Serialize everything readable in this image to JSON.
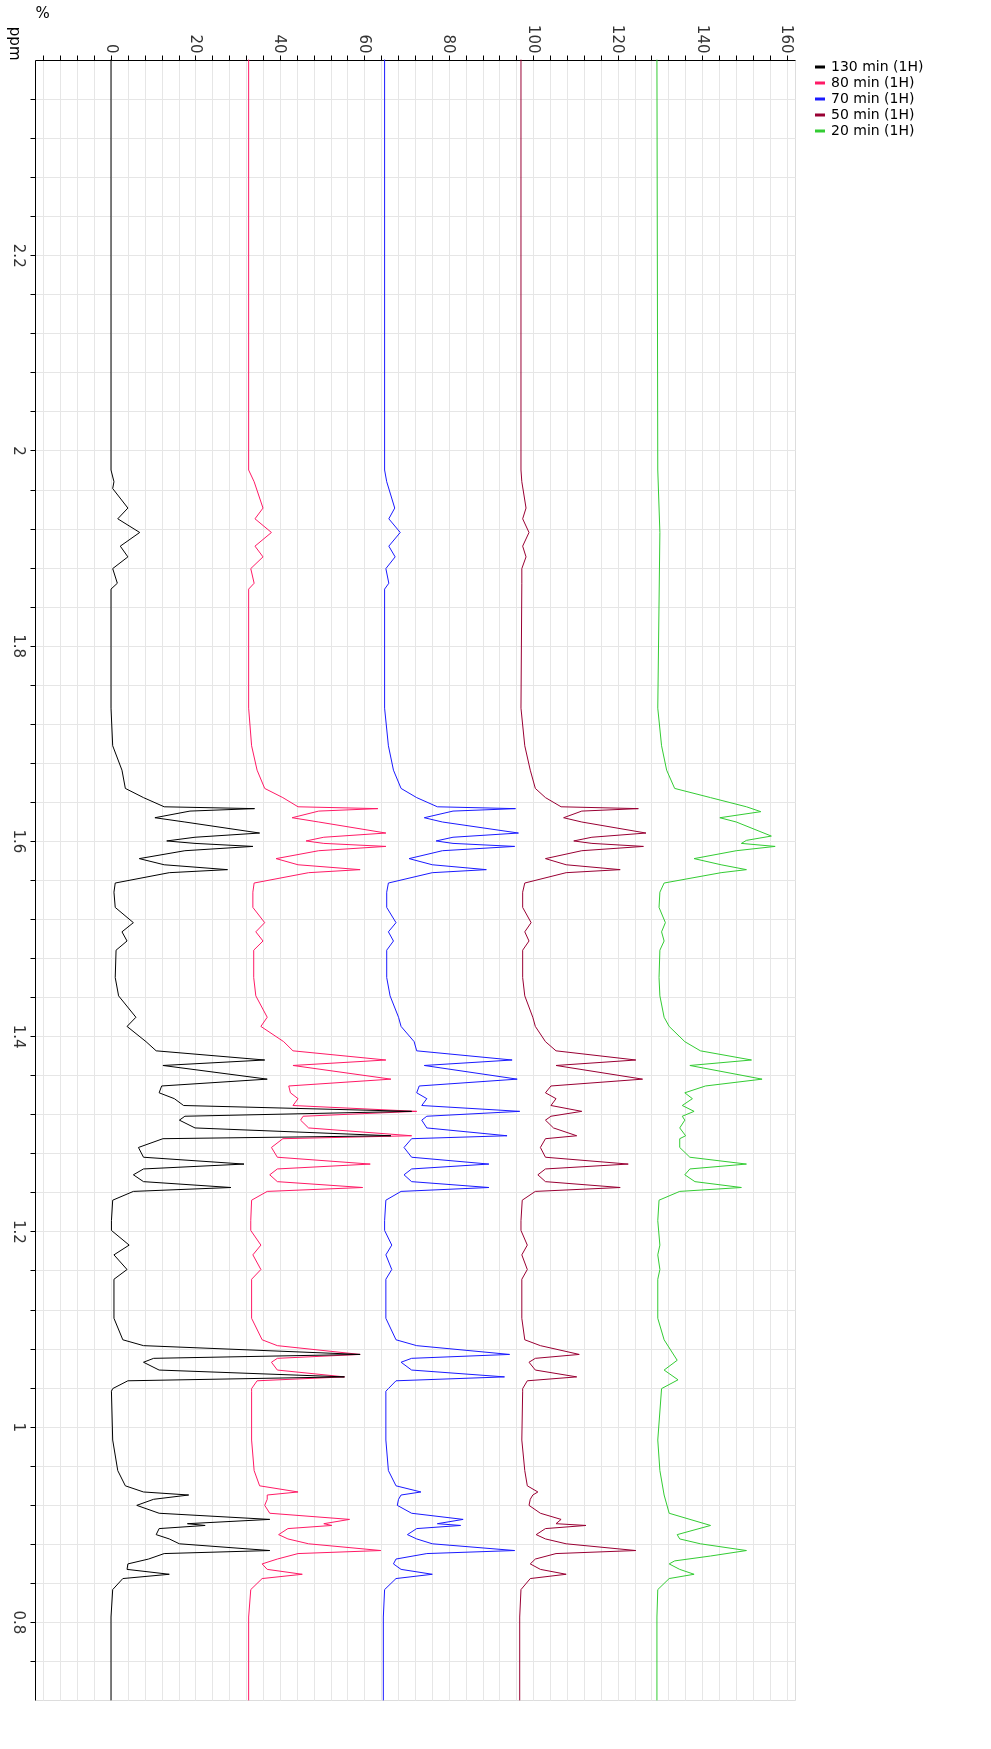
{
  "chart_data": {
    "type": "line",
    "orientation": "horizontal",
    "xlabel": "%",
    "ylabel": "ppm",
    "legend": "top right",
    "grid": true,
    "xlim": [
      -18,
      162
    ],
    "ylim": [
      0.72,
      2.4
    ],
    "xticks": [
      {
        "value": -16,
        "label": null
      },
      {
        "value": -12,
        "label": null
      },
      {
        "value": -8,
        "label": null
      },
      {
        "value": -4,
        "label": null
      },
      0,
      {
        "value": 4,
        "label": null
      },
      {
        "value": 8,
        "label": null
      },
      {
        "value": 12,
        "label": null
      },
      {
        "value": 16,
        "label": null
      },
      20,
      {
        "value": 24,
        "label": null
      },
      {
        "value": 28,
        "label": null
      },
      {
        "value": 32,
        "label": null
      },
      {
        "value": 36,
        "label": null
      },
      40,
      {
        "value": 44,
        "label": null
      },
      {
        "value": 48,
        "label": null
      },
      {
        "value": 52,
        "label": null
      },
      {
        "value": 56,
        "label": null
      },
      60,
      {
        "value": 64,
        "label": null
      },
      {
        "value": 68,
        "label": null
      },
      {
        "value": 72,
        "label": null
      },
      {
        "value": 76,
        "label": null
      },
      80,
      {
        "value": 84,
        "label": null
      },
      {
        "value": 88,
        "label": null
      },
      {
        "value": 92,
        "label": null
      },
      {
        "value": 96,
        "label": null
      },
      100,
      {
        "value": 104,
        "label": null
      },
      {
        "value": 108,
        "label": null
      },
      {
        "value": 112,
        "label": null
      },
      {
        "value": 116,
        "label": null
      },
      120,
      {
        "value": 124,
        "label": null
      },
      {
        "value": 128,
        "label": null
      },
      {
        "value": 132,
        "label": null
      },
      {
        "value": 136,
        "label": null
      },
      140,
      {
        "value": 144,
        "label": null
      },
      {
        "value": 148,
        "label": null
      },
      {
        "value": 152,
        "label": null
      },
      {
        "value": 156,
        "label": null
      },
      160
    ],
    "yticks": [
      {
        "value": 0.76,
        "label": null
      },
      0.8,
      {
        "value": 0.84,
        "label": null
      },
      {
        "value": 0.88,
        "label": null
      },
      {
        "value": 0.92,
        "label": null
      },
      {
        "value": 0.96,
        "label": null
      },
      1,
      {
        "value": 1.04,
        "label": null
      },
      {
        "value": 1.08,
        "label": null
      },
      {
        "value": 1.12,
        "label": null
      },
      {
        "value": 1.16,
        "label": null
      },
      1.2,
      {
        "value": 1.24,
        "label": null
      },
      {
        "value": 1.28,
        "label": null
      },
      {
        "value": 1.32,
        "label": null
      },
      {
        "value": 1.36,
        "label": null
      },
      1.4,
      {
        "value": 1.44,
        "label": null
      },
      {
        "value": 1.48,
        "label": null
      },
      {
        "value": 1.52,
        "label": null
      },
      {
        "value": 1.56,
        "label": null
      },
      1.6,
      {
        "value": 1.64,
        "label": null
      },
      {
        "value": 1.68,
        "label": null
      },
      {
        "value": 1.72,
        "label": null
      },
      {
        "value": 1.76,
        "label": null
      },
      1.8,
      {
        "value": 1.84,
        "label": null
      },
      {
        "value": 1.88,
        "label": null
      },
      {
        "value": 1.92,
        "label": null
      },
      {
        "value": 1.96,
        "label": null
      },
      2,
      {
        "value": 2.04,
        "label": null
      },
      {
        "value": 2.08,
        "label": null
      },
      {
        "value": 2.12,
        "label": null
      },
      {
        "value": 2.16,
        "label": null
      },
      2.2,
      {
        "value": 2.24,
        "label": null
      },
      {
        "value": 2.28,
        "label": null
      },
      {
        "value": 2.32,
        "label": null
      },
      {
        "value": 2.36,
        "label": null
      }
    ],
    "series": [
      {
        "name": "130 min (1H)",
        "color": "#000000",
        "x": [
          2.4,
          1.98,
          1.968,
          1.961,
          1.941,
          1.93,
          1.916,
          1.902,
          1.891,
          1.879,
          1.864,
          1.858,
          1.736,
          1.6975,
          1.6725,
          1.6538,
          1.6444,
          1.635,
          1.6331,
          1.6306,
          1.6238,
          1.6194,
          1.6081,
          1.6038,
          1.6,
          1.5975,
          1.5944,
          1.59,
          1.5819,
          1.5756,
          1.5706,
          1.5675,
          1.5569,
          1.5475,
          1.5319,
          1.5163,
          1.5069,
          1.4975,
          1.4881,
          1.46,
          1.4413,
          1.4194,
          1.41,
          1.3944,
          1.385,
          1.3756,
          1.37,
          1.356,
          1.349,
          1.342,
          1.336,
          1.329,
          1.323,
          1.318,
          1.314,
          1.306,
          1.298,
          1.295,
          1.286,
          1.276,
          1.269,
          1.264,
          1.258,
          1.251,
          1.245,
          1.241,
          1.232,
          1.211,
          1.201,
          1.186,
          1.176,
          1.161,
          1.151,
          1.111,
          1.089,
          1.083,
          1.074,
          1.07,
          1.066,
          1.058,
          1.051,
          1.047,
          1.039,
          1.0363,
          0.9863,
          0.955,
          0.9394,
          0.9331,
          0.93,
          0.9256,
          0.9194,
          0.9113,
          0.905,
          0.9006,
          0.8988,
          0.8956,
          0.8894,
          0.885,
          0.88,
          0.8731,
          0.87,
          0.8644,
          0.8594,
          0.8538,
          0.8488,
          0.8444,
          0.8331,
          0.805,
          0.72
        ],
        "values": [
          0,
          0,
          0.7,
          0.4,
          4.0,
          1.6,
          6.8,
          2.2,
          4.0,
          0.4,
          1.5,
          0,
          0,
          0.4,
          2.6,
          3.4,
          7.7,
          12.6,
          34.0,
          18.7,
          10.4,
          17.5,
          35.2,
          19.9,
          13.2,
          19.9,
          33.6,
          17.5,
          6.7,
          12.6,
          27.6,
          13.8,
          1.0,
          0.7,
          1.0,
          5.3,
          2.6,
          3.8,
          1.2,
          1.0,
          1.8,
          5.9,
          3.8,
          8.3,
          10.7,
          36.4,
          12.3,
          37.0,
          12.0,
          11.4,
          15.0,
          17.2,
          71.2,
          17.5,
          16.2,
          19.9,
          66.3,
          12.3,
          6.5,
          7.7,
          31.5,
          7.7,
          5.3,
          7.7,
          28.4,
          5.3,
          0.4,
          0.1,
          0.1,
          4.3,
          0.7,
          3.8,
          0.7,
          0.7,
          2.8,
          7.7,
          59.0,
          10.1,
          7.7,
          11.4,
          55.3,
          4.0,
          0.4,
          0.1,
          0.4,
          1.6,
          3.4,
          7.7,
          18.4,
          10.1,
          6.1,
          11.4,
          37.6,
          18.1,
          22.3,
          11.4,
          10.7,
          13.8,
          16.2,
          37.6,
          12.6,
          8.9,
          4.0,
          3.8,
          13.8,
          2.8,
          0.4,
          0,
          0
        ]
      },
      {
        "name": "80 min (1H)",
        "color": "#ff1a66",
        "x": [
          2.4,
          1.98,
          1.968,
          1.941,
          1.93,
          1.916,
          1.902,
          1.891,
          1.879,
          1.864,
          1.858,
          1.736,
          1.6975,
          1.6725,
          1.6538,
          1.6444,
          1.635,
          1.6331,
          1.6306,
          1.6238,
          1.6194,
          1.6081,
          1.6038,
          1.6,
          1.5975,
          1.5944,
          1.59,
          1.5819,
          1.5756,
          1.5706,
          1.5675,
          1.5569,
          1.5475,
          1.5319,
          1.5163,
          1.5069,
          1.4975,
          1.4881,
          1.46,
          1.4413,
          1.4194,
          1.41,
          1.3944,
          1.385,
          1.3756,
          1.37,
          1.356,
          1.349,
          1.342,
          1.336,
          1.329,
          1.323,
          1.318,
          1.314,
          1.306,
          1.298,
          1.295,
          1.286,
          1.276,
          1.269,
          1.264,
          1.258,
          1.251,
          1.245,
          1.241,
          1.232,
          1.211,
          1.201,
          1.186,
          1.176,
          1.161,
          1.151,
          1.111,
          1.089,
          1.083,
          1.074,
          1.07,
          1.066,
          1.058,
          1.051,
          1.047,
          1.039,
          1.0363,
          0.9863,
          0.955,
          0.9394,
          0.9331,
          0.93,
          0.9256,
          0.9194,
          0.9113,
          0.905,
          0.9006,
          0.8988,
          0.8956,
          0.8894,
          0.885,
          0.88,
          0.8731,
          0.87,
          0.8644,
          0.8594,
          0.8538,
          0.8488,
          0.8444,
          0.8331,
          0.805,
          0.72
        ],
        "values": [
          32.6,
          32.6,
          33.9,
          36.0,
          34.1,
          38.0,
          34.1,
          36.0,
          33.1,
          33.9,
          32.6,
          32.6,
          33.3,
          34.6,
          36.4,
          40.7,
          44.3,
          63.2,
          49.2,
          42.9,
          49.2,
          65.1,
          50.4,
          46.2,
          50.4,
          65.1,
          49.2,
          39.1,
          44.3,
          59.0,
          46.8,
          33.9,
          33.6,
          33.6,
          36.4,
          34.3,
          36.0,
          33.8,
          33.8,
          34.3,
          37.0,
          35.5,
          40.9,
          43.1,
          65.1,
          43.1,
          66.3,
          42.1,
          42.5,
          44.3,
          43.1,
          72.4,
          45.5,
          44.9,
          46.8,
          71.2,
          40.7,
          38.0,
          39.4,
          61.4,
          39.4,
          37.6,
          39.4,
          59.6,
          37.0,
          33.3,
          33.1,
          33.1,
          35.5,
          33.6,
          35.5,
          33.3,
          33.3,
          35.8,
          39.4,
          59.0,
          39.4,
          38.0,
          39.4,
          55.3,
          34.6,
          33.3,
          33.3,
          33.3,
          33.9,
          35.2,
          44.3,
          37.0,
          37.0,
          36.4,
          37.6,
          56.5,
          50.4,
          52.3,
          41.9,
          39.7,
          41.9,
          46.8,
          63.9,
          44.3,
          39.4,
          35.8,
          37.0,
          45.3,
          35.8,
          33.1,
          32.6,
          32.6
        ]
      },
      {
        "name": "70 min (1H)",
        "color": "#1a1aff",
        "x": [
          2.4,
          1.98,
          1.968,
          1.941,
          1.93,
          1.916,
          1.902,
          1.891,
          1.879,
          1.864,
          1.858,
          1.736,
          1.6975,
          1.6725,
          1.6538,
          1.6444,
          1.635,
          1.6331,
          1.6306,
          1.6238,
          1.6194,
          1.6081,
          1.6038,
          1.6,
          1.5975,
          1.5944,
          1.59,
          1.5819,
          1.5756,
          1.5706,
          1.5675,
          1.5569,
          1.5475,
          1.5319,
          1.5163,
          1.5069,
          1.4975,
          1.4881,
          1.46,
          1.4413,
          1.4194,
          1.41,
          1.3944,
          1.385,
          1.3756,
          1.37,
          1.356,
          1.349,
          1.342,
          1.336,
          1.329,
          1.323,
          1.318,
          1.314,
          1.306,
          1.298,
          1.295,
          1.286,
          1.276,
          1.269,
          1.264,
          1.258,
          1.251,
          1.245,
          1.241,
          1.232,
          1.211,
          1.201,
          1.186,
          1.176,
          1.161,
          1.151,
          1.111,
          1.089,
          1.083,
          1.074,
          1.07,
          1.066,
          1.058,
          1.051,
          1.047,
          1.039,
          1.0363,
          0.9863,
          0.955,
          0.9394,
          0.9331,
          0.93,
          0.9256,
          0.9194,
          0.9113,
          0.905,
          0.9006,
          0.8988,
          0.8956,
          0.8894,
          0.885,
          0.88,
          0.8731,
          0.87,
          0.8644,
          0.8594,
          0.8538,
          0.8488,
          0.8444,
          0.8331,
          0.805,
          0.72
        ],
        "values": [
          64.8,
          64.8,
          65.3,
          67.2,
          65.8,
          68.5,
          65.8,
          67.3,
          65.1,
          65.8,
          64.8,
          64.8,
          65.7,
          66.9,
          68.7,
          72.4,
          77.3,
          95.8,
          81.0,
          74.2,
          78.5,
          96.5,
          81.0,
          77.0,
          81.0,
          95.6,
          78.5,
          70.6,
          76.1,
          88.9,
          76.1,
          65.7,
          65.3,
          65.3,
          67.5,
          65.7,
          66.9,
          65.3,
          65.3,
          66.1,
          68.1,
          68.7,
          71.8,
          72.4,
          95.0,
          74.2,
          96.2,
          73.0,
          72.4,
          74.8,
          73.6,
          96.8,
          74.8,
          73.6,
          74.8,
          93.8,
          71.2,
          69.4,
          71.2,
          89.5,
          71.2,
          69.4,
          71.2,
          89.5,
          68.7,
          65.1,
          64.8,
          64.8,
          66.5,
          65.1,
          66.5,
          65.1,
          65.1,
          67.5,
          72.4,
          94.4,
          71.2,
          68.7,
          71.2,
          93.2,
          67.5,
          65.7,
          65.1,
          65.1,
          65.7,
          67.5,
          73.4,
          68.7,
          68.1,
          67.8,
          71.2,
          83.4,
          77.3,
          82.8,
          72.4,
          70.2,
          72.4,
          76.1,
          95.6,
          74.8,
          67.5,
          66.9,
          68.7,
          76.1,
          67.5,
          64.8,
          64.5,
          64.5
        ]
      },
      {
        "name": "50 min (1H)",
        "color": "#990033",
        "x": [
          2.4,
          1.98,
          1.968,
          1.941,
          1.93,
          1.916,
          1.902,
          1.891,
          1.879,
          1.864,
          1.736,
          1.6975,
          1.6725,
          1.6538,
          1.6444,
          1.635,
          1.6331,
          1.6306,
          1.6238,
          1.6194,
          1.6081,
          1.6038,
          1.6,
          1.5975,
          1.5944,
          1.59,
          1.5819,
          1.5756,
          1.5706,
          1.5675,
          1.5569,
          1.5475,
          1.5319,
          1.5163,
          1.5069,
          1.4975,
          1.4881,
          1.46,
          1.4413,
          1.4194,
          1.41,
          1.3944,
          1.385,
          1.3756,
          1.37,
          1.356,
          1.349,
          1.342,
          1.336,
          1.329,
          1.323,
          1.318,
          1.314,
          1.306,
          1.298,
          1.295,
          1.286,
          1.276,
          1.269,
          1.264,
          1.258,
          1.251,
          1.245,
          1.241,
          1.232,
          1.211,
          1.201,
          1.186,
          1.176,
          1.161,
          1.151,
          1.111,
          1.089,
          1.083,
          1.074,
          1.07,
          1.066,
          1.058,
          1.051,
          1.047,
          1.039,
          1.0363,
          0.9863,
          0.955,
          0.9394,
          0.9331,
          0.93,
          0.9256,
          0.9194,
          0.9113,
          0.905,
          0.9006,
          0.8988,
          0.8956,
          0.8894,
          0.885,
          0.88,
          0.8731,
          0.87,
          0.8644,
          0.8594,
          0.8538,
          0.8488,
          0.8444,
          0.8331,
          0.805,
          0.72
        ],
        "values": [
          97.1,
          97.1,
          97.3,
          98.3,
          97.5,
          99.0,
          97.5,
          98.3,
          97.3,
          97.3,
          97.1,
          98.0,
          99.3,
          100.5,
          102.9,
          106.6,
          124.9,
          111.5,
          107.2,
          111.5,
          126.7,
          113.9,
          109.6,
          113.9,
          126.1,
          111.5,
          102.9,
          107.8,
          120.6,
          107.8,
          98.0,
          97.5,
          97.5,
          99.5,
          98.0,
          99.0,
          97.5,
          97.5,
          98.0,
          99.9,
          100.5,
          102.9,
          105.4,
          124.3,
          105.4,
          125.9,
          104.2,
          102.9,
          105.4,
          104.2,
          111.5,
          104.2,
          102.9,
          104.8,
          110.3,
          102.9,
          101.7,
          102.9,
          122.5,
          102.9,
          101.1,
          102.9,
          120.6,
          100.5,
          97.4,
          97.1,
          97.1,
          98.6,
          97.3,
          98.6,
          97.3,
          97.3,
          98.0,
          101.7,
          110.9,
          100.5,
          99.0,
          100.5,
          110.3,
          98.6,
          97.5,
          97.5,
          97.3,
          98.0,
          98.6,
          101.1,
          99.9,
          99.3,
          99.0,
          101.7,
          106.6,
          105.4,
          112.5,
          102.9,
          100.7,
          102.9,
          107.8,
          124.3,
          105.4,
          100.5,
          99.3,
          101.7,
          107.8,
          99.3,
          97.1,
          96.8,
          96.8
        ]
      },
      {
        "name": "20 min (1H)",
        "color": "#33cc33",
        "x": [
          2.4,
          1.98,
          1.916,
          1.736,
          1.6975,
          1.6725,
          1.6538,
          1.6444,
          1.635,
          1.63,
          1.6238,
          1.6194,
          1.605,
          1.6006,
          1.5975,
          1.5944,
          1.59,
          1.5819,
          1.5756,
          1.5706,
          1.5675,
          1.5569,
          1.5475,
          1.5319,
          1.5163,
          1.5069,
          1.4975,
          1.4881,
          1.46,
          1.4413,
          1.4194,
          1.41,
          1.3944,
          1.385,
          1.3756,
          1.37,
          1.356,
          1.349,
          1.342,
          1.336,
          1.329,
          1.323,
          1.318,
          1.314,
          1.306,
          1.298,
          1.295,
          1.286,
          1.276,
          1.269,
          1.264,
          1.258,
          1.251,
          1.245,
          1.241,
          1.232,
          1.211,
          1.186,
          1.176,
          1.161,
          1.151,
          1.111,
          1.089,
          1.068,
          1.058,
          1.048,
          1.039,
          0.9863,
          0.955,
          0.93,
          0.9113,
          0.8988,
          0.8894,
          0.885,
          0.88,
          0.8731,
          0.8675,
          0.8625,
          0.8594,
          0.8538,
          0.8488,
          0.8444,
          0.8331,
          0.805,
          0.72
        ],
        "values": [
          129.3,
          129.5,
          130.0,
          129.5,
          130.4,
          131.6,
          133.5,
          142.0,
          150.5,
          153.9,
          144.2,
          148.1,
          156.4,
          150.5,
          149.3,
          157.3,
          148.1,
          138.1,
          144.5,
          150.5,
          144.5,
          131.0,
          130.0,
          129.8,
          131.3,
          130.4,
          131.0,
          130.0,
          129.8,
          130.0,
          131.0,
          132.2,
          135.9,
          139.6,
          151.7,
          137.1,
          154.2,
          140.8,
          135.9,
          137.7,
          135.3,
          138.1,
          135.3,
          135.9,
          134.7,
          136.1,
          134.7,
          134.7,
          137.1,
          150.5,
          137.1,
          135.9,
          138.3,
          149.3,
          134.7,
          129.8,
          129.5,
          130.0,
          129.5,
          130.0,
          129.5,
          129.5,
          131.0,
          134.1,
          131.0,
          134.3,
          130.4,
          129.5,
          130.0,
          131.0,
          132.2,
          142.0,
          134.1,
          134.7,
          139.6,
          150.5,
          142.0,
          133.5,
          132.2,
          134.7,
          138.1,
          132.2,
          129.5,
          129.3,
          129.3
        ]
      }
    ]
  }
}
